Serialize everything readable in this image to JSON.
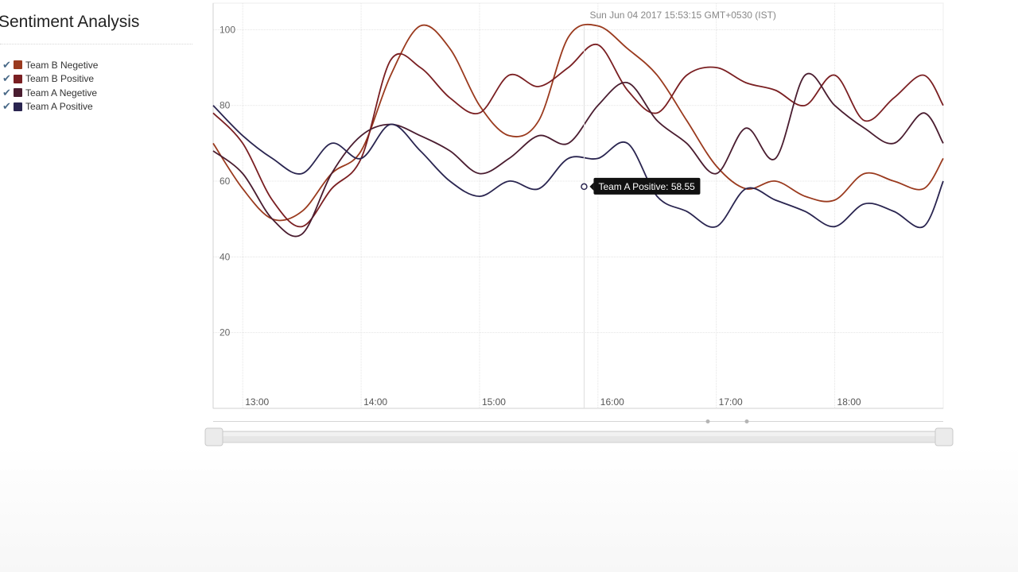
{
  "sidebar": {
    "title": "Sentiment Analysis"
  },
  "legend": [
    {
      "label": "Team B Negetive",
      "color": "#9a3a1e",
      "check": "✔"
    },
    {
      "label": "Team B Positive",
      "color": "#7a1f22",
      "check": "✔"
    },
    {
      "label": "Team A Negetive",
      "color": "#4a1d30",
      "check": "✔"
    },
    {
      "label": "Team A Positive",
      "color": "#2a2550",
      "check": "✔"
    }
  ],
  "tooltip": {
    "date": "Sun Jun 04 2017 15:53:15 GMT+0530 (IST)",
    "label": "Team A Positive: 58.55"
  },
  "chart_data": {
    "type": "line",
    "title": "",
    "xlabel": "",
    "ylabel": "",
    "xlim": [
      "12:45",
      "18:55"
    ],
    "ylim": [
      0,
      107
    ],
    "y_ticks": [
      20,
      40,
      60,
      80,
      100
    ],
    "x_ticks": [
      "13:00",
      "14:00",
      "15:00",
      "16:00",
      "17:00",
      "18:00"
    ],
    "grid": true,
    "legend_position": "left",
    "x": [
      "12:45",
      "13:00",
      "13:15",
      "13:30",
      "13:45",
      "14:00",
      "14:15",
      "14:30",
      "14:45",
      "15:00",
      "15:15",
      "15:30",
      "15:45",
      "16:00",
      "16:15",
      "16:30",
      "16:45",
      "17:00",
      "17:15",
      "17:30",
      "17:45",
      "18:00",
      "18:15",
      "18:30",
      "18:45",
      "18:55"
    ],
    "series": [
      {
        "name": "Team B Negetive",
        "color": "#9a3a1e",
        "values": [
          70,
          58,
          50,
          52,
          62,
          68,
          88,
          101,
          95,
          80,
          72,
          76,
          98,
          101,
          95,
          88,
          76,
          64,
          58,
          60,
          56,
          55,
          62,
          60,
          58,
          66
        ]
      },
      {
        "name": "Team B Positive",
        "color": "#7a1f22",
        "values": [
          78,
          70,
          55,
          48,
          58,
          66,
          92,
          90,
          82,
          78,
          88,
          85,
          90,
          96,
          84,
          78,
          88,
          90,
          86,
          84,
          80,
          88,
          76,
          82,
          88,
          80
        ]
      },
      {
        "name": "Team A Negetive",
        "color": "#4a1d30",
        "values": [
          68,
          62,
          50,
          46,
          62,
          72,
          75,
          72,
          68,
          62,
          66,
          72,
          70,
          80,
          86,
          76,
          70,
          62,
          74,
          66,
          88,
          80,
          74,
          70,
          78,
          70
        ]
      },
      {
        "name": "Team A Positive",
        "color": "#2a2550",
        "values": [
          80,
          72,
          66,
          62,
          70,
          66,
          75,
          68,
          60,
          56,
          60,
          58,
          66,
          66,
          70,
          56,
          52,
          48,
          58,
          55,
          52,
          48,
          54,
          52,
          48,
          60
        ]
      }
    ]
  }
}
